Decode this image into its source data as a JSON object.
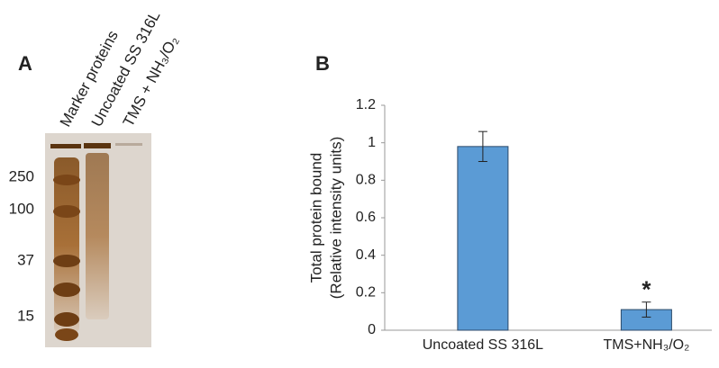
{
  "panel_a": {
    "panel_label": "A",
    "lanes": [
      "Marker proteins",
      "Uncoated SS 316L",
      "TMS + NH₃/O₂"
    ],
    "ladder": [
      "250",
      "100",
      "37",
      "15"
    ]
  },
  "chart_data": {
    "type": "bar",
    "panel_label": "B",
    "ylabel": [
      "Total protein bound",
      "(Relative intensity units)"
    ],
    "categories": [
      "Uncoated SS 316L",
      "TMS+NH₃/O₂"
    ],
    "values": [
      0.98,
      0.11
    ],
    "errors": [
      0.08,
      0.04
    ],
    "color": "#5b9bd5",
    "annotations": [
      {
        "text": "*",
        "category": 1
      }
    ],
    "ylim": [
      0,
      1.2
    ],
    "yticks": [
      0,
      0.2,
      0.4,
      0.6,
      0.8,
      1,
      1.2
    ],
    "grid": false
  }
}
